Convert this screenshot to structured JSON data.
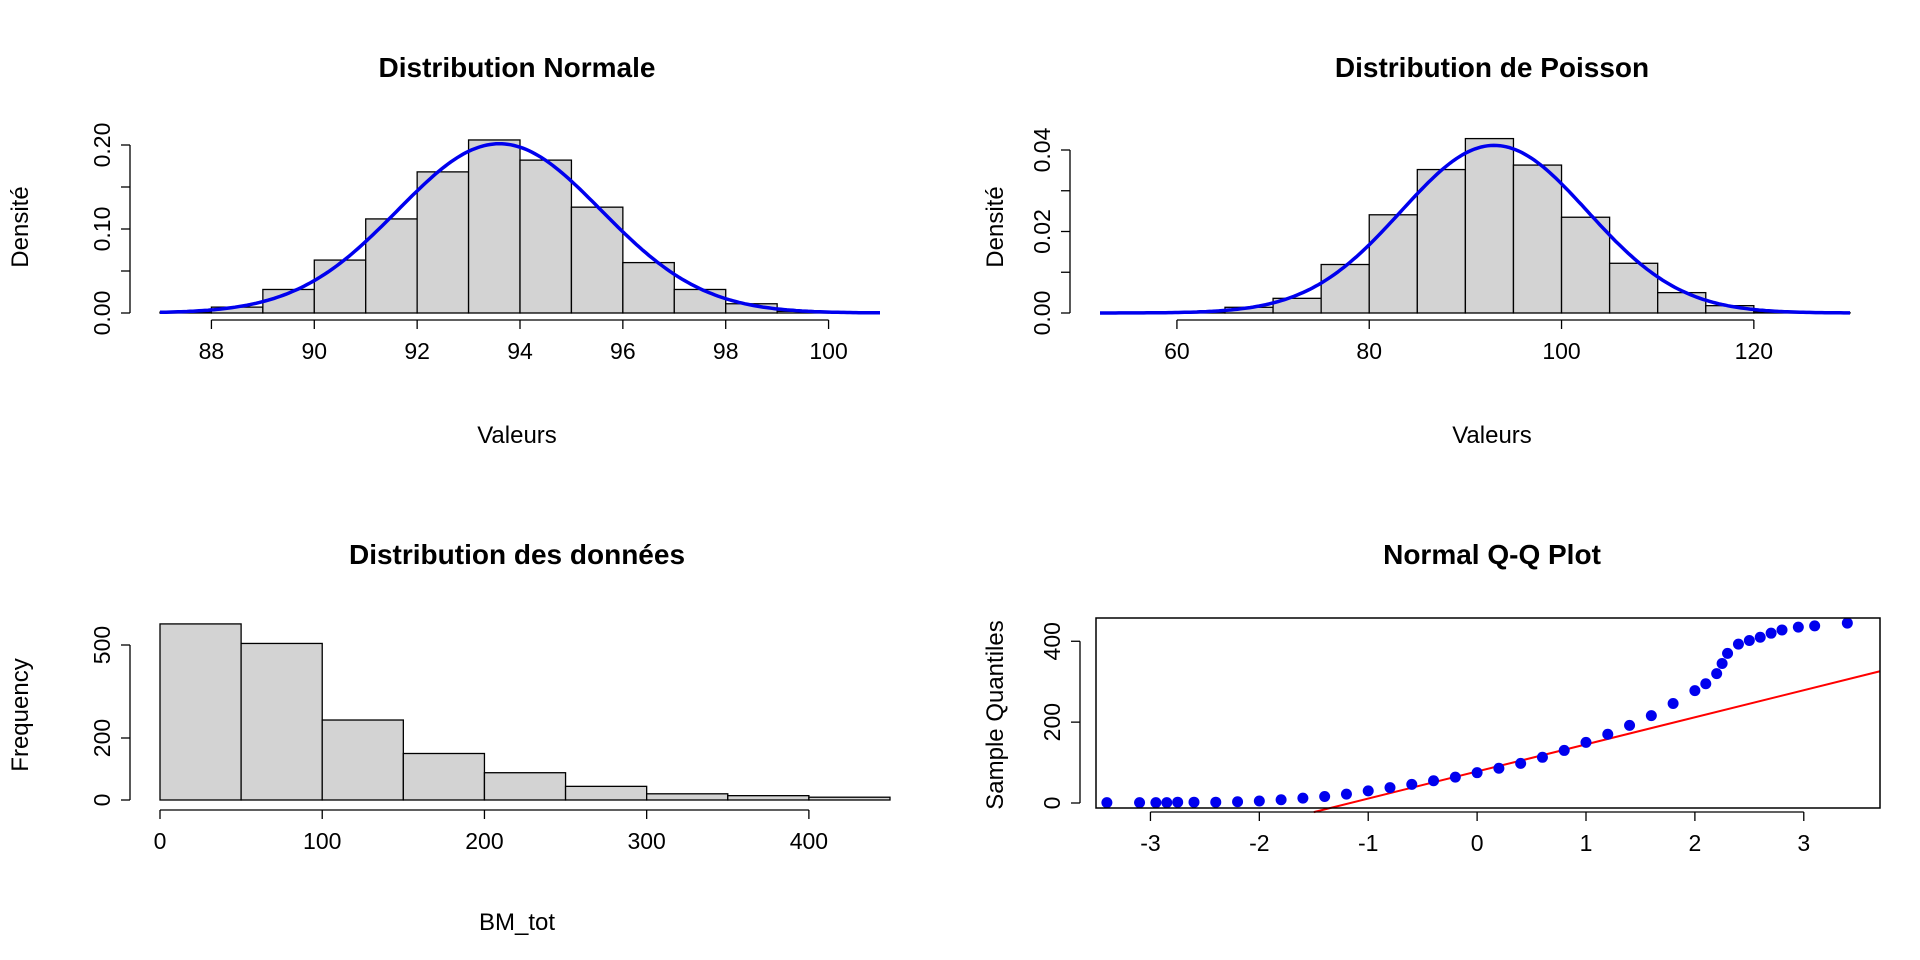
{
  "chart_data": [
    {
      "id": "normal",
      "type": "bar",
      "title": "Distribution Normale",
      "xlabel": "Valeurs",
      "ylabel": "Densité",
      "xlim": [
        87,
        101
      ],
      "ylim": [
        0,
        0.2
      ],
      "xticks": [
        88,
        90,
        92,
        94,
        96,
        98,
        100
      ],
      "yticks": [
        0,
        0.05,
        0.1,
        0.15,
        0.2
      ],
      "ytick_labels": [
        "0.00",
        "",
        "0.10",
        "",
        "0.20"
      ],
      "bin_edges": [
        87,
        88,
        89,
        90,
        91,
        92,
        93,
        94,
        95,
        96,
        97,
        98,
        99,
        100
      ],
      "values": [
        0.001,
        0.007,
        0.028,
        0.063,
        0.112,
        0.168,
        0.206,
        0.182,
        0.126,
        0.06,
        0.028,
        0.011,
        0.002
      ],
      "curve": {
        "type": "normal",
        "mean": 93.6,
        "sd": 1.98,
        "color": "#0000ee"
      },
      "bar_color": "#d3d3d3"
    },
    {
      "id": "poisson",
      "type": "bar",
      "title": "Distribution de Poisson",
      "xlabel": "Valeurs",
      "ylabel": "Densité",
      "xlim": [
        52,
        130
      ],
      "ylim": [
        0,
        0.04
      ],
      "xticks": [
        60,
        80,
        100,
        120
      ],
      "yticks": [
        0,
        0.01,
        0.02,
        0.03,
        0.04
      ],
      "ytick_labels": [
        "0.00",
        "",
        "0.02",
        "",
        "0.04"
      ],
      "bin_edges": [
        55,
        60,
        65,
        70,
        75,
        80,
        85,
        90,
        95,
        100,
        105,
        110,
        115,
        120,
        125,
        130
      ],
      "values": [
        0.0001,
        0.0002,
        0.0014,
        0.0036,
        0.0119,
        0.0241,
        0.0352,
        0.0428,
        0.0363,
        0.0235,
        0.0122,
        0.005,
        0.0018,
        0.0003,
        0.0001
      ],
      "curve": {
        "type": "normal",
        "mean": 93,
        "sd": 9.7,
        "color": "#0000ee"
      },
      "bar_color": "#d3d3d3"
    },
    {
      "id": "donnees",
      "type": "bar",
      "title": "Distribution des données",
      "xlabel": "BM_tot",
      "ylabel": "Frequency",
      "xlim": [
        0,
        450
      ],
      "ylim": [
        0,
        500
      ],
      "xticks": [
        0,
        100,
        200,
        300,
        400
      ],
      "yticks": [
        0,
        200,
        500
      ],
      "ytick_labels": [
        "0",
        "200",
        "500"
      ],
      "bin_edges": [
        0,
        50,
        100,
        150,
        200,
        250,
        300,
        350,
        400,
        450
      ],
      "values": [
        568,
        505,
        258,
        150,
        88,
        44,
        20,
        14,
        9
      ],
      "bar_color": "#d3d3d3"
    },
    {
      "id": "qq",
      "type": "scatter",
      "title": "Normal Q-Q Plot",
      "xlabel": "",
      "ylabel": "Sample Quantiles",
      "xlim": [
        -3.5,
        3.7
      ],
      "ylim": [
        0,
        460
      ],
      "xticks": [
        -3,
        -2,
        -1,
        0,
        1,
        2,
        3
      ],
      "yticks": [
        0,
        200,
        400
      ],
      "ytick_labels": [
        "0",
        "200",
        "400"
      ],
      "points": [
        [
          -3.4,
          1
        ],
        [
          -3.1,
          1
        ],
        [
          -2.95,
          1
        ],
        [
          -2.85,
          1
        ],
        [
          -2.75,
          2
        ],
        [
          -2.6,
          2
        ],
        [
          -2.4,
          2
        ],
        [
          -2.2,
          3
        ],
        [
          -2.0,
          5
        ],
        [
          -1.8,
          8
        ],
        [
          -1.6,
          12
        ],
        [
          -1.4,
          16
        ],
        [
          -1.2,
          22
        ],
        [
          -1.0,
          30
        ],
        [
          -0.8,
          38
        ],
        [
          -0.6,
          46
        ],
        [
          -0.4,
          55
        ],
        [
          -0.2,
          64
        ],
        [
          0.0,
          75
        ],
        [
          0.2,
          86
        ],
        [
          0.4,
          98
        ],
        [
          0.6,
          113
        ],
        [
          0.8,
          130
        ],
        [
          1.0,
          150
        ],
        [
          1.2,
          170
        ],
        [
          1.4,
          192
        ],
        [
          1.6,
          216
        ],
        [
          1.8,
          246
        ],
        [
          2.0,
          278
        ],
        [
          2.1,
          295
        ],
        [
          2.2,
          320
        ],
        [
          2.25,
          345
        ],
        [
          2.3,
          370
        ],
        [
          2.4,
          393
        ],
        [
          2.5,
          402
        ],
        [
          2.6,
          410
        ],
        [
          2.7,
          420
        ],
        [
          2.8,
          428
        ],
        [
          2.95,
          435
        ],
        [
          3.1,
          438
        ],
        [
          3.4,
          445
        ]
      ],
      "reference_line": {
        "intercept": 78,
        "slope": 67,
        "color": "#ff0000"
      },
      "point_color": "#0000ee"
    }
  ]
}
